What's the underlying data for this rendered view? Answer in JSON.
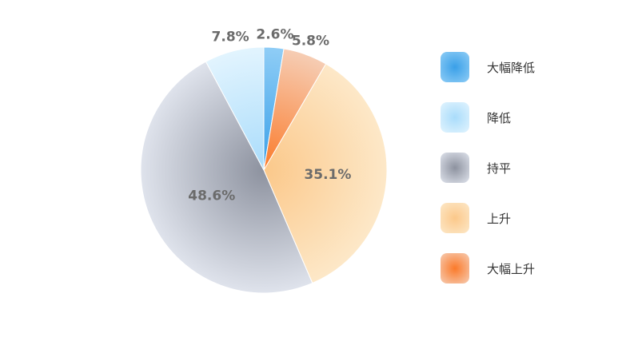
{
  "chart_data": {
    "type": "pie",
    "title": "",
    "categories": [
      "大幅降低",
      "降低",
      "持平",
      "上升",
      "大幅上升"
    ],
    "values": [
      2.6,
      7.8,
      48.6,
      35.1,
      5.8
    ],
    "labels": [
      "2.6%",
      "7.8%",
      "48.6%",
      "35.1%",
      "5.8%"
    ],
    "colors": [
      "#3aa0e8",
      "#a9dcfb",
      "#8d929f",
      "#fbc88a",
      "#fb7a2a"
    ],
    "legend_position": "right"
  }
}
